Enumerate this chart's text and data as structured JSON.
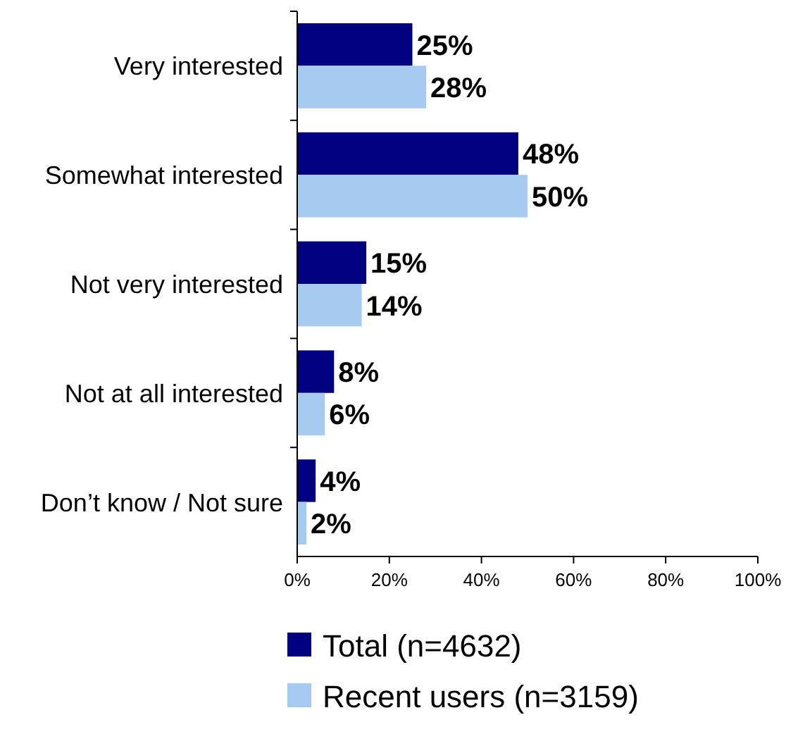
{
  "chart_data": {
    "type": "bar",
    "orientation": "horizontal",
    "categories": [
      "Very interested",
      "Somewhat interested",
      "Not very interested",
      "Not at all interested",
      "Don’t know / Not sure"
    ],
    "series": [
      {
        "name": "Total (n=4632)",
        "color": "#000080",
        "values": [
          25,
          48,
          15,
          8,
          4
        ],
        "value_labels": [
          "25%",
          "48%",
          "15%",
          "8%",
          "4%"
        ]
      },
      {
        "name": "Recent users (n=3159)",
        "color": "#a6caf0",
        "values": [
          28,
          50,
          14,
          6,
          2
        ],
        "value_labels": [
          "28%",
          "50%",
          "14%",
          "6%",
          "2%"
        ]
      }
    ],
    "xlim": [
      0,
      100
    ],
    "xticks": [
      {
        "value": 0,
        "label": "0%"
      },
      {
        "value": 20,
        "label": "20%"
      },
      {
        "value": 40,
        "label": "40%"
      },
      {
        "value": 60,
        "label": "60%"
      },
      {
        "value": 80,
        "label": "80%"
      },
      {
        "value": 100,
        "label": "100%"
      }
    ],
    "legend": "bottom"
  }
}
